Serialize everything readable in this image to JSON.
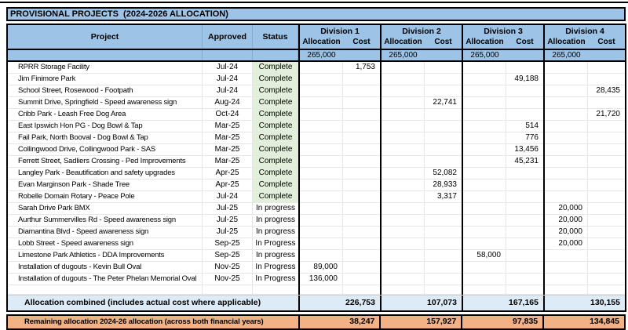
{
  "title": "PROVISIONAL PROJECTS  (2024-2026 ALLOCATION)",
  "colors": {
    "header_blue": "#9DC3E6",
    "complete_green": "#E2EFDA",
    "combined_light_blue": "#DDEBF7",
    "remaining_orange": "#F4B183"
  },
  "columns": {
    "project": "Project",
    "approved": "Approved",
    "status": "Status",
    "allocation": "Allocation",
    "cost": "Cost",
    "divisions": [
      "Division 1",
      "Division 2",
      "Division 3",
      "Division 4"
    ]
  },
  "base_allocation": {
    "d1": "265,000",
    "d2": "265,000",
    "d3": "265,000",
    "d4": "265,000"
  },
  "projects": [
    {
      "name": "RPRR Storage Facility",
      "approved": "Jul-24",
      "status": "Complete",
      "d1c": "1,753"
    },
    {
      "name": "Jim Finimore Park",
      "approved": "Jul-24",
      "status": "Complete",
      "d3c": "49,188"
    },
    {
      "name": "School Street, Rosewood - Footpath",
      "approved": "Jul-24",
      "status": "Complete",
      "d4c": "28,435"
    },
    {
      "name": "Summit Drive, Springfield - Speed awareness sign",
      "approved": "Aug-24",
      "status": "Complete",
      "d2c": "22,741"
    },
    {
      "name": "Cribb Park - Leash Free Dog Area",
      "approved": "Oct-24",
      "status": "Complete",
      "d4c": "21,720"
    },
    {
      "name": "East Ipswich Hon PG - Dog Bowl & Tap",
      "approved": "Mar-25",
      "status": "Complete",
      "d3c": "514"
    },
    {
      "name": "Fail Park, North Booval - Dog Bowl & Tap",
      "approved": "Mar-25",
      "status": "Complete",
      "d3c": "776"
    },
    {
      "name": "Collingwood Drive, Collingwood Park - SAS",
      "approved": "Mar-25",
      "status": "Complete",
      "d3c": "13,456"
    },
    {
      "name": "Ferrett Street, Sadliers Crossing - Ped Improvements",
      "approved": "Mar-25",
      "status": "Complete",
      "d3c": "45,231"
    },
    {
      "name": "Langley Park - Beautification and safety upgrades",
      "approved": "Apr-25",
      "status": "Complete",
      "d2c": "52,082"
    },
    {
      "name": "Evan Marginson Park - Shade Tree",
      "approved": "Apr-25",
      "status": "Complete",
      "d2c": "28,933"
    },
    {
      "name": "Robelle Domain Rotary - Peace Pole",
      "approved": "Jul-24",
      "status": "Complete",
      "d2c": "3,317"
    },
    {
      "name": "Sarah Drive Park BMX",
      "approved": "Jul-25",
      "status": "In progress",
      "d4a": "20,000"
    },
    {
      "name": "Aurthur Summervilles Rd - Speed awareness sign",
      "approved": "Jul-25",
      "status": "In progress",
      "d4a": "20,000"
    },
    {
      "name": "Diamantina Blvd - Speed awareness sign",
      "approved": "Jul-25",
      "status": "In progress",
      "d4a": "20,000"
    },
    {
      "name": "Lobb Street  - Speed awareness sign",
      "approved": "Sep-25",
      "status": "In Progress",
      "d4a": "20,000"
    },
    {
      "name": "Limestone Park Athletics - DDA Improvements",
      "approved": "Sep-25",
      "status": "In progress",
      "d3a": "58,000"
    },
    {
      "name": "Installation of dugouts - Kevin Bull Oval",
      "approved": "Nov-25",
      "status": "In Progress",
      "d1a": "89,000"
    },
    {
      "name": "Installation of dugouts - The Peter Phelan Memorial Oval",
      "approved": "Nov-25",
      "status": "In Progress",
      "d1a": "136,000"
    }
  ],
  "totals": {
    "combined_label": "Allocation combined (includes actual cost where applicable)",
    "combined": [
      "226,753",
      "107,073",
      "167,165",
      "130,155"
    ],
    "remaining_label": "Remaining allocation 2024-26 allocation (across both financial years)",
    "remaining": [
      "38,247",
      "157,927",
      "97,835",
      "134,845"
    ]
  }
}
